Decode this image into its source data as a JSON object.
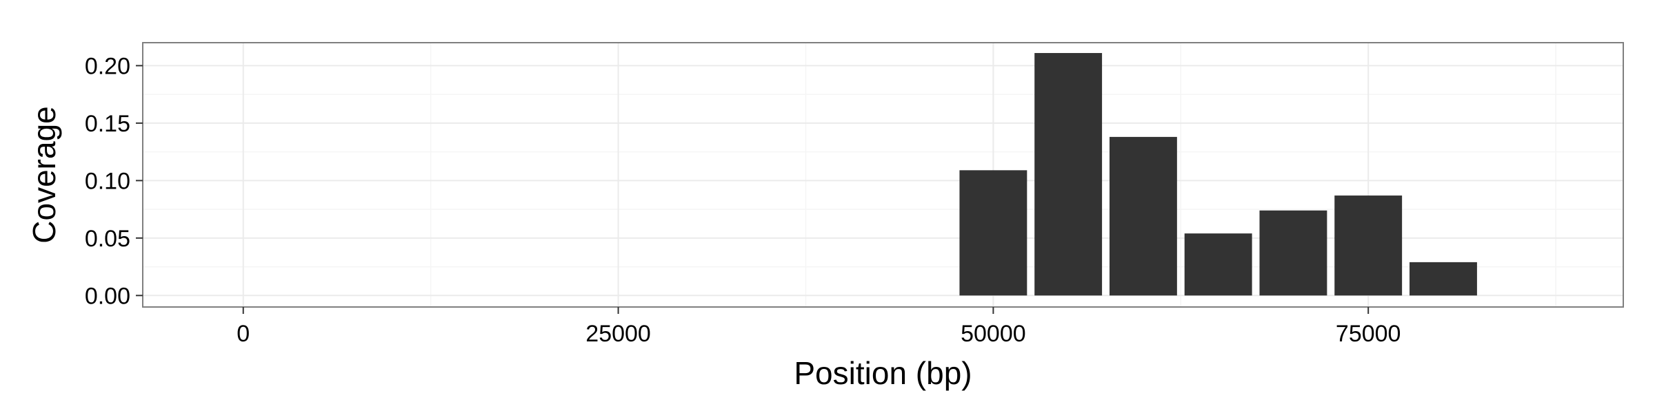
{
  "chart_data": {
    "type": "bar",
    "title": "",
    "xlabel": "Position (bp)",
    "ylabel": "Coverage",
    "xlim": [
      -6700,
      92000
    ],
    "ylim": [
      -0.01,
      0.22
    ],
    "x_ticks": [
      0,
      25000,
      50000,
      75000
    ],
    "x_tick_labels": [
      "0",
      "25000",
      "50000",
      "75000"
    ],
    "y_ticks": [
      0.0,
      0.05,
      0.1,
      0.15,
      0.2
    ],
    "y_tick_labels": [
      "0.00",
      "0.05",
      "0.10",
      "0.15",
      "0.20"
    ],
    "bin_width": 5000,
    "bars": [
      {
        "x": 50000,
        "value": 0.109
      },
      {
        "x": 55000,
        "value": 0.211
      },
      {
        "x": 60000,
        "value": 0.138
      },
      {
        "x": 65000,
        "value": 0.054
      },
      {
        "x": 70000,
        "value": 0.074
      },
      {
        "x": 75000,
        "value": 0.087
      },
      {
        "x": 80000,
        "value": 0.029
      }
    ],
    "grid": true,
    "bar_color": "#333333",
    "panel_border_color": "#7f7f7f",
    "grid_color": "#ebebeb"
  }
}
